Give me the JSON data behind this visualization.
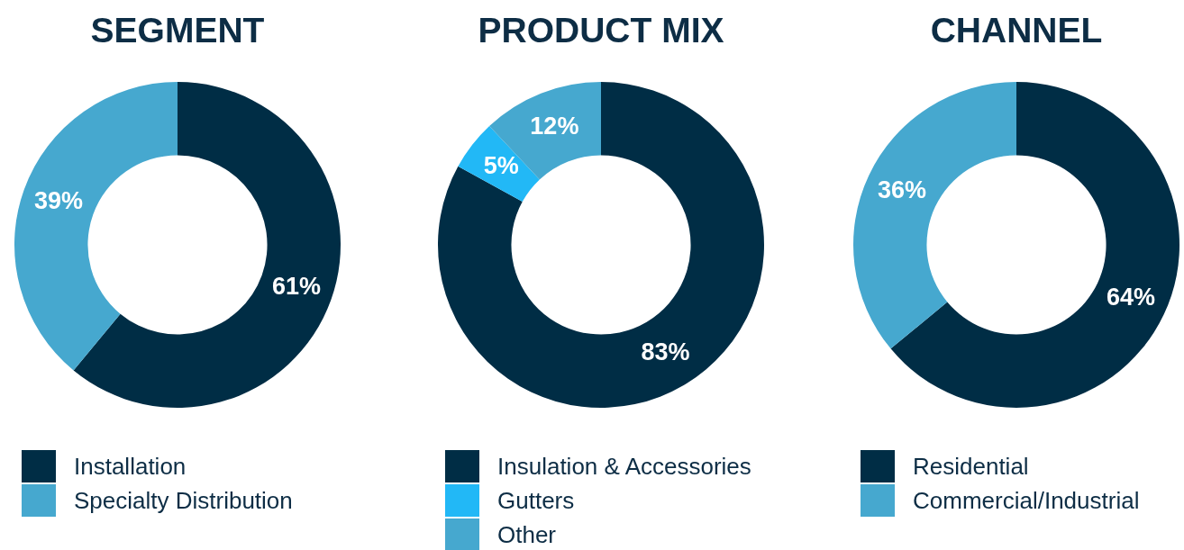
{
  "chart_data": [
    {
      "type": "donut",
      "title": "SEGMENT",
      "categories": [
        "Installation",
        "Specialty Distribution"
      ],
      "values": [
        61,
        39
      ],
      "colors": [
        "#002d45",
        "#46a8cf"
      ],
      "value_labels": [
        "61%",
        "39%"
      ],
      "legend": "bottom"
    },
    {
      "type": "donut",
      "title": "PRODUCT MIX",
      "categories": [
        "Insulation & Accessories",
        "Gutters",
        "Other"
      ],
      "values": [
        83,
        5,
        12
      ],
      "colors": [
        "#002d45",
        "#22b8f6",
        "#46a8cf"
      ],
      "value_labels": [
        "83%",
        "5%",
        "12%"
      ],
      "legend": "bottom"
    },
    {
      "type": "donut",
      "title": "CHANNEL",
      "categories": [
        "Residential",
        "Commercial/Industrial"
      ],
      "values": [
        64,
        36
      ],
      "colors": [
        "#002d45",
        "#46a8cf"
      ],
      "value_labels": [
        "64%",
        "36%"
      ],
      "legend": "bottom"
    }
  ]
}
